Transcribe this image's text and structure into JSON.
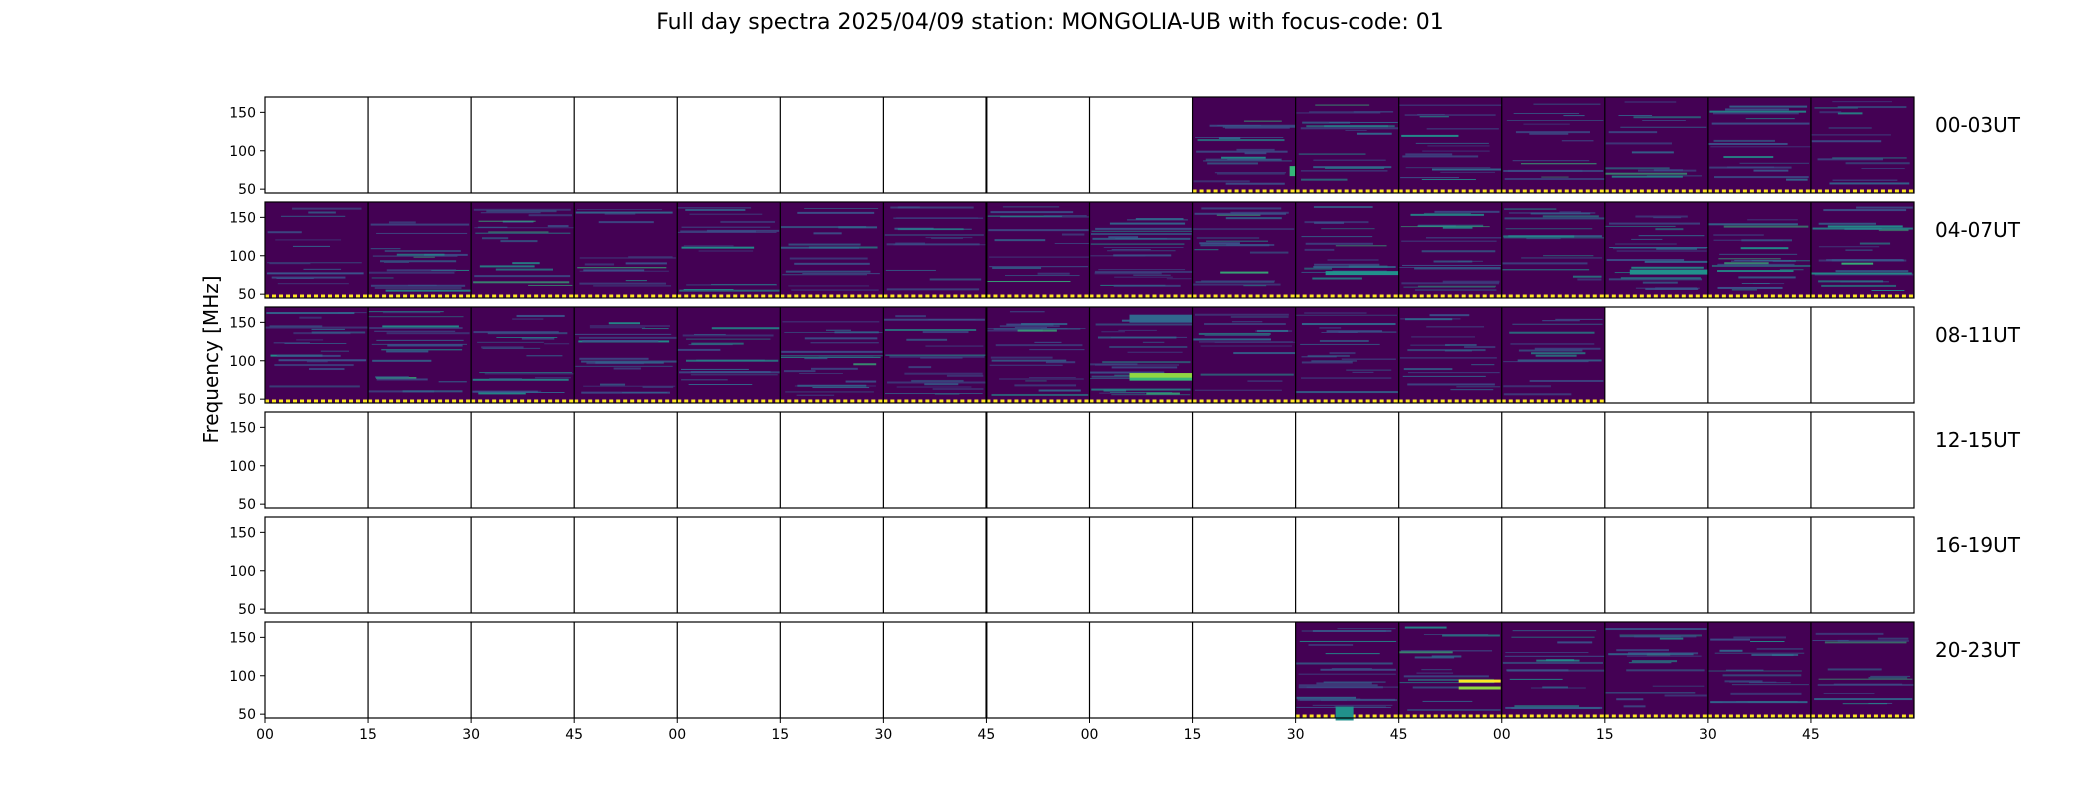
{
  "chart_data": {
    "type": "heatmap",
    "title": "Full day spectra 2025/04/09 station: MONGOLIA-UB with focus-code: 01",
    "ylabel": "Frequency [MHz]",
    "xlabel": "",
    "yticks": [
      50,
      100,
      150
    ],
    "ylim": [
      45,
      170
    ],
    "xticks": [
      "00",
      "15",
      "30",
      "45",
      "00",
      "15",
      "30",
      "45",
      "00",
      "15",
      "30",
      "45",
      "00",
      "15",
      "30",
      "45"
    ],
    "colormap": "viridis",
    "rows": [
      {
        "label": "00-03UT",
        "filled": [
          false,
          false,
          false,
          false,
          false,
          false,
          false,
          false,
          false,
          true,
          true,
          true,
          true,
          true,
          true,
          true
        ]
      },
      {
        "label": "04-07UT",
        "filled": [
          true,
          true,
          true,
          true,
          true,
          true,
          true,
          true,
          true,
          true,
          true,
          true,
          true,
          true,
          true,
          true
        ]
      },
      {
        "label": "08-11UT",
        "filled": [
          true,
          true,
          true,
          true,
          true,
          true,
          true,
          true,
          true,
          true,
          true,
          true,
          true,
          false,
          false,
          false
        ]
      },
      {
        "label": "12-15UT",
        "filled": [
          false,
          false,
          false,
          false,
          false,
          false,
          false,
          false,
          false,
          false,
          false,
          false,
          false,
          false,
          false,
          false
        ]
      },
      {
        "label": "16-19UT",
        "filled": [
          false,
          false,
          false,
          false,
          false,
          false,
          false,
          false,
          false,
          false,
          false,
          false,
          false,
          false,
          false,
          false
        ]
      },
      {
        "label": "20-23UT",
        "filled": [
          false,
          false,
          false,
          false,
          false,
          false,
          false,
          false,
          false,
          false,
          true,
          true,
          true,
          true,
          true,
          true
        ]
      }
    ]
  },
  "colors": {
    "background": "#440154",
    "bands": [
      "#3b528b",
      "#31688e",
      "#21918c",
      "#35b779",
      "#90d743",
      "#fde725"
    ],
    "flag_line": "#fde725"
  }
}
